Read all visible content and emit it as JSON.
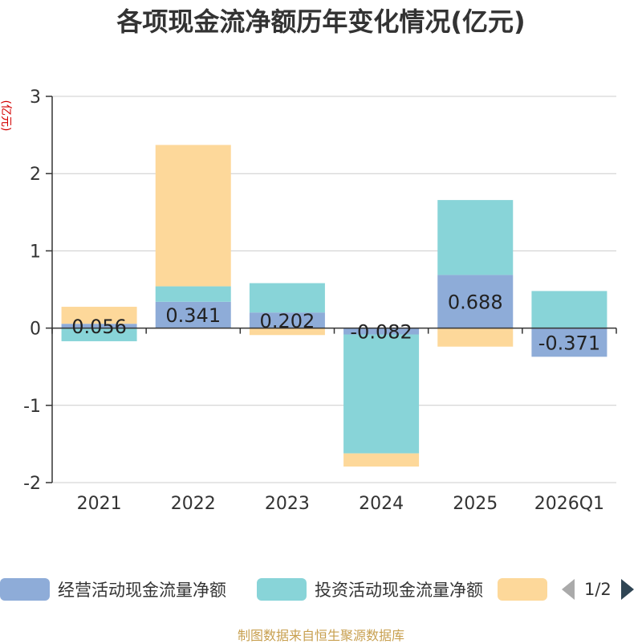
{
  "chart_data": {
    "type": "bar",
    "stacked": true,
    "title": "各项现金流净额历年变化情况(亿元)",
    "ylabel": "(亿元)",
    "categories": [
      "2021",
      "2022",
      "2023",
      "2024",
      "2025",
      "2026Q1"
    ],
    "ylim": [
      -2,
      3
    ],
    "yticks": [
      -2,
      -1,
      0,
      1,
      2,
      3
    ],
    "grid": true,
    "legend_position": "bottom",
    "series": [
      {
        "name": "经营活动现金流量净额",
        "color": "#8eacd8",
        "values": [
          0.056,
          0.341,
          0.202,
          -0.082,
          0.688,
          -0.371
        ],
        "labels": [
          "0.056",
          "0.341",
          "0.202",
          "-0.082",
          "0.688",
          "-0.371"
        ]
      },
      {
        "name": "投资活动现金流量净额",
        "color": "#88d4d8",
        "values": [
          -0.17,
          0.2,
          0.38,
          -1.54,
          0.97,
          0.48
        ]
      },
      {
        "name": "",
        "color": "#fdd89a",
        "values": [
          0.22,
          1.83,
          -0.09,
          -0.17,
          -0.24,
          0.0
        ]
      }
    ]
  },
  "legend": {
    "page": "1/2"
  },
  "source": "制图数据来自恒生聚源数据库"
}
